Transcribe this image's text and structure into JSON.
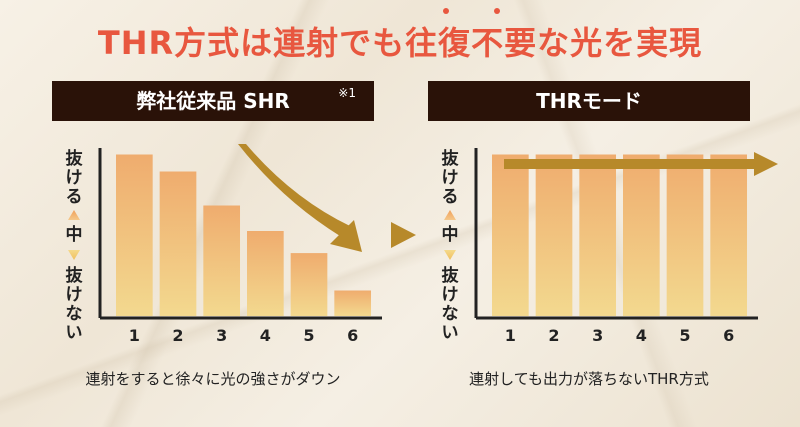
{
  "title": "THR方式は連射でも往復不要な光を実現",
  "left": {
    "header": "弊社従来品 SHR",
    "note": "※1",
    "caption": "連射をすると徐々に光の強さがダウン"
  },
  "right": {
    "header": "THRモード",
    "caption": "連射しても出力が落ちないTHR方式"
  },
  "axis": {
    "top_label": "抜ける",
    "middle_label": "中",
    "bottom_label": "抜けない"
  },
  "colors": {
    "arrow": "#b7892a",
    "axis": "#222222",
    "title": "#e8573f"
  },
  "chart_data": [
    {
      "type": "bar",
      "title": "弊社従来品 SHR",
      "categories": [
        "1",
        "2",
        "3",
        "4",
        "5",
        "6"
      ],
      "values": [
        95,
        85,
        65,
        50,
        37,
        15
      ],
      "ylim": [
        0,
        100
      ],
      "annotation": "downward trend arrow"
    },
    {
      "type": "bar",
      "title": "THRモード",
      "categories": [
        "1",
        "2",
        "3",
        "4",
        "5",
        "6"
      ],
      "values": [
        95,
        95,
        95,
        95,
        95,
        95
      ],
      "ylim": [
        0,
        100
      ],
      "annotation": "flat rightward arrow"
    }
  ]
}
